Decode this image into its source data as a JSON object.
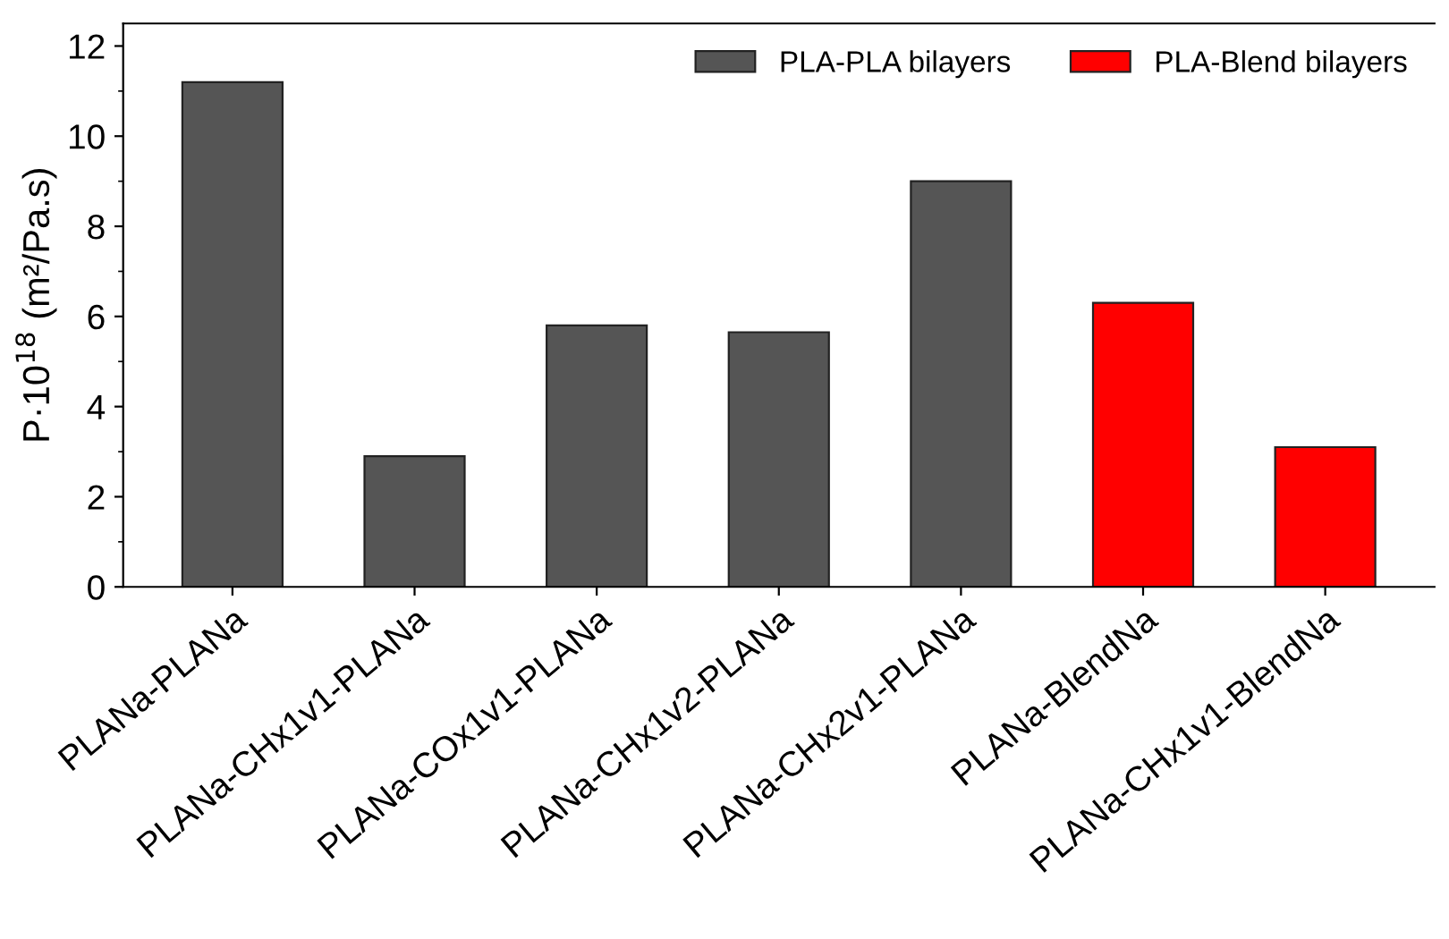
{
  "chart_data": {
    "type": "bar",
    "ylabel": "P·10$^{18}$ (m²/Pa.s)",
    "categories": [
      "PLANa-PLANa",
      "PLANa-CHx1v1-PLANa",
      "PLANa-COx1v1-PLANa",
      "PLANa-CHx1v2-PLANa",
      "PLANa-CHx2v1-PLANa",
      "PLANa-BlendNa",
      "PLANa-CHx1v1-BlendNa"
    ],
    "series": [
      {
        "name": "PLA-PLA bilayers",
        "color": "#555555",
        "values": [
          11.2,
          2.9,
          5.8,
          5.65,
          9.0,
          null,
          null
        ]
      },
      {
        "name": "PLA-Blend bilayers",
        "color": "#ff0000",
        "values": [
          null,
          null,
          null,
          null,
          null,
          6.3,
          3.1
        ]
      }
    ],
    "stacked": true,
    "ylim": [
      0,
      12.5
    ],
    "yticks": [
      0,
      2,
      4,
      6,
      8,
      10,
      12
    ],
    "grid": false,
    "legend": "top right"
  }
}
